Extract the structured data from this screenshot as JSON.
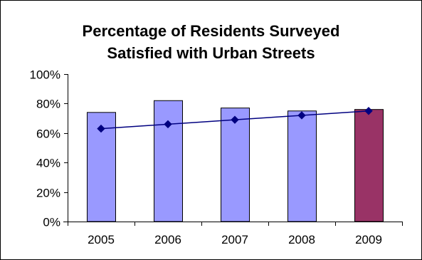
{
  "chart_data": {
    "type": "bar",
    "title_lines": [
      "Percentage of Residents Surveyed",
      "Satisfied with Urban Streets"
    ],
    "categories": [
      "2005",
      "2006",
      "2007",
      "2008",
      "2009"
    ],
    "series": [
      {
        "type": "bar",
        "values": [
          74,
          82,
          77,
          75,
          76
        ],
        "colors": [
          "#9999ff",
          "#9999ff",
          "#9999ff",
          "#9999ff",
          "#993366"
        ]
      },
      {
        "type": "line",
        "marker": "diamond",
        "color": "#000080",
        "values": [
          63,
          66,
          69,
          72,
          75
        ]
      }
    ],
    "y_ticks": [
      "0%",
      "20%",
      "40%",
      "60%",
      "80%",
      "100%"
    ],
    "ylim": [
      0,
      100
    ],
    "grid": false,
    "legend": "none"
  }
}
